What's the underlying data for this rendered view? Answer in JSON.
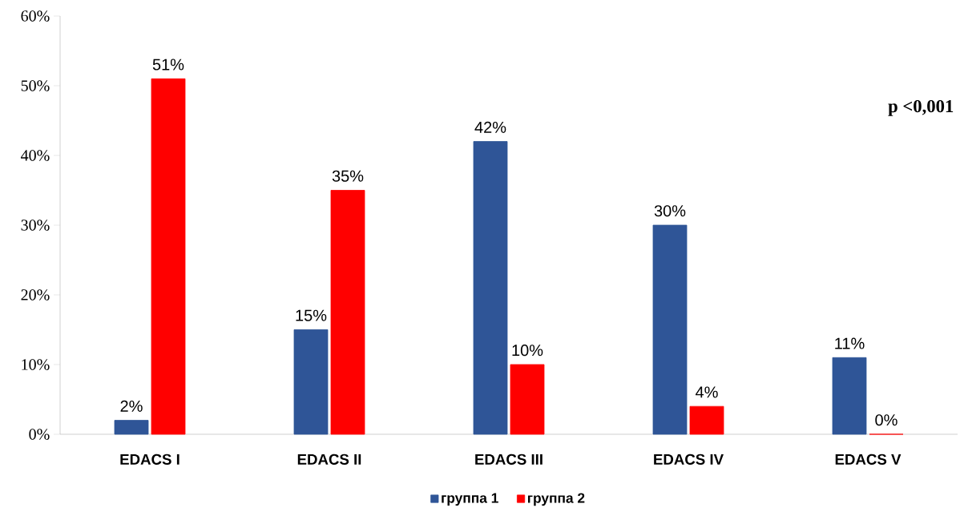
{
  "chart_data": {
    "type": "bar",
    "categories": [
      "EDACS I",
      "EDACS II",
      "EDACS III",
      "EDACS IV",
      "EDACS V"
    ],
    "series": [
      {
        "name": "группа 1",
        "color": "#2f5597",
        "values": [
          2,
          15,
          42,
          30,
          11
        ],
        "value_labels": [
          "2%",
          "15%",
          "42%",
          "30%",
          "11%"
        ]
      },
      {
        "name": "группа 2",
        "color": "#ff0000",
        "values": [
          51,
          35,
          10,
          4,
          0
        ],
        "value_labels": [
          "51%",
          "35%",
          "10%",
          "4%",
          "0%"
        ]
      }
    ],
    "ylim": [
      0,
      60
    ],
    "yticks": [
      {
        "value": 0,
        "label": "0%"
      },
      {
        "value": 10,
        "label": "10%"
      },
      {
        "value": 20,
        "label": "20%"
      },
      {
        "value": 30,
        "label": "30%"
      },
      {
        "value": 40,
        "label": "40%"
      },
      {
        "value": 50,
        "label": "50%"
      },
      {
        "value": 60,
        "label": "60%"
      }
    ],
    "annotations": [
      "p <0,001"
    ],
    "grid": false,
    "legend": "bottom"
  }
}
